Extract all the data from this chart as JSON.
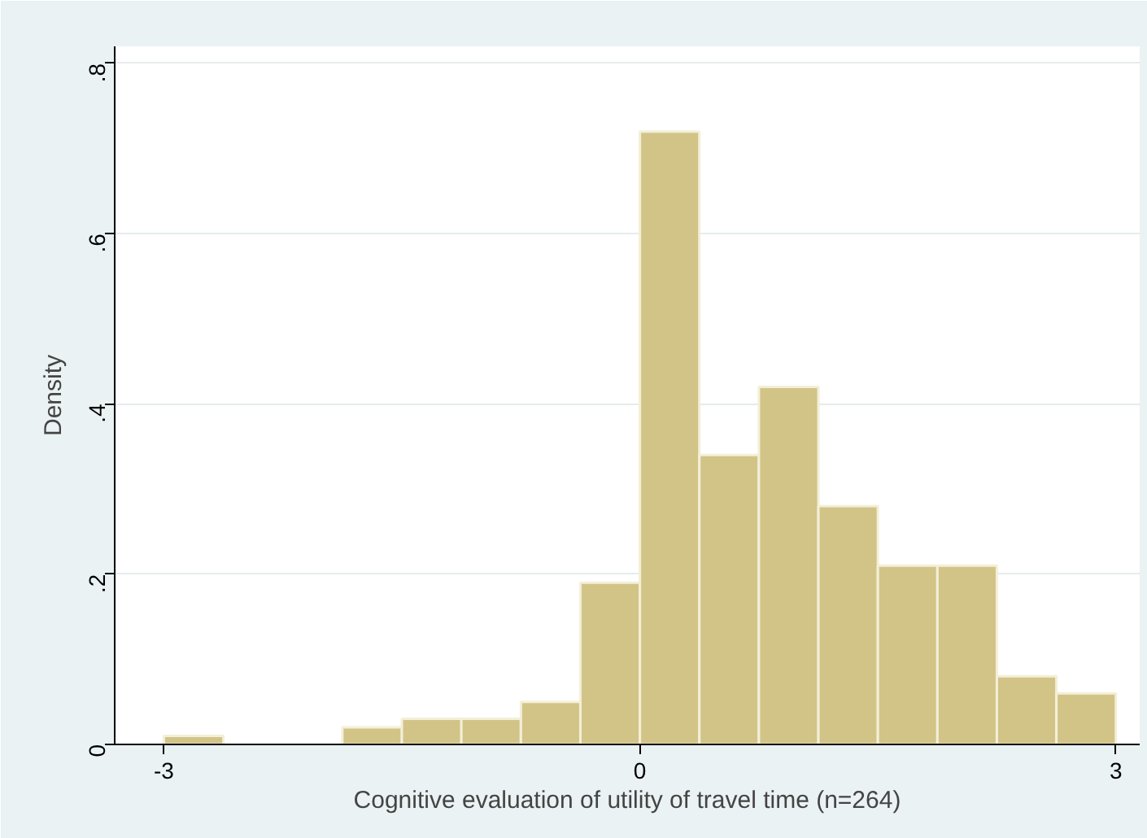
{
  "chart_data": {
    "type": "histogram",
    "xlabel": "Cognitive evaluation of utility of travel time (n=264)",
    "ylabel": "Density",
    "bins": [
      -3,
      -2.625,
      -2.25,
      -1.875,
      -1.5,
      -1.125,
      -0.75,
      -0.375,
      0,
      0.375,
      0.75,
      1.125,
      1.5,
      1.875,
      2.25,
      2.625,
      3
    ],
    "values": [
      0.01,
      0,
      0,
      0.02,
      0.03,
      0.03,
      0.05,
      0.19,
      0.72,
      0.34,
      0.42,
      0.28,
      0.21,
      0.21,
      0.08,
      0.06
    ],
    "color": "#d2c487",
    "xlim": [
      -3.31,
      3.15
    ],
    "ylim": [
      0,
      0.82
    ],
    "xticks": [
      -3,
      0,
      3
    ],
    "yticks": [
      0,
      {
        "value": 0.2,
        "label": ".2"
      },
      {
        "value": 0.4,
        "label": ".4"
      },
      {
        "value": 0.6,
        "label": ".6"
      },
      {
        "value": 0.8,
        "label": ".8"
      }
    ],
    "grid": "y"
  }
}
